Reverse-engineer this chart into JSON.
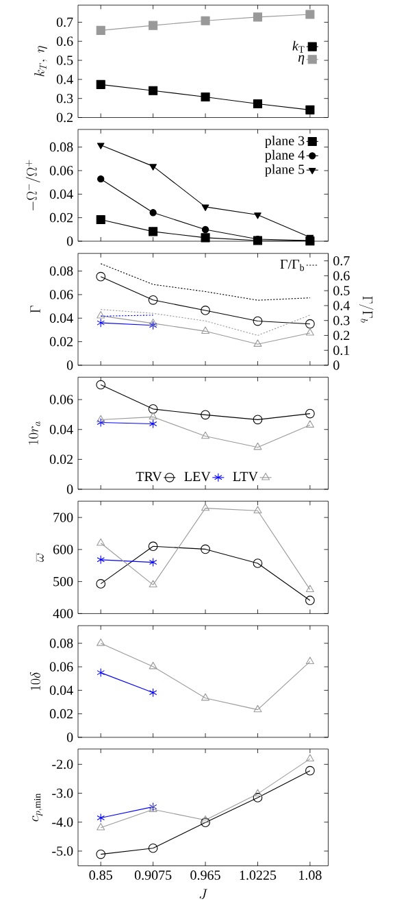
{
  "chart_data": [
    {
      "type": "line",
      "ylabel": "k_T,\\ \\eta",
      "x": [
        0.85,
        0.9075,
        0.965,
        1.0225,
        1.08
      ],
      "xlim": [
        0.825,
        1.1
      ],
      "xticks": [
        0.85,
        0.9075,
        0.965,
        1.0225,
        1.08
      ],
      "ylim": [
        0.2,
        0.79
      ],
      "yticks": [
        0.2,
        0.3,
        0.4,
        0.5,
        0.6,
        0.7
      ],
      "tick_labels": "y",
      "legend": "right",
      "grid": false,
      "series": [
        {
          "name": "*k*$_{T}$",
          "color": "#000000",
          "marker": "square",
          "values": [
            0.373,
            0.341,
            0.308,
            0.272,
            0.24
          ]
        },
        {
          "name": "*η*",
          "color": "#999999",
          "marker": "square",
          "values": [
            0.657,
            0.683,
            0.708,
            0.727,
            0.741
          ]
        }
      ]
    },
    {
      "type": "line",
      "ylabel": "-\\Omega^{-}/\\Omega^{+}",
      "x": [
        0.85,
        0.9075,
        0.965,
        1.0225,
        1.08
      ],
      "xlim": [
        0.825,
        1.1
      ],
      "xticks": [
        0.85,
        0.9075,
        0.965,
        1.0225,
        1.08
      ],
      "ylim": [
        0,
        0.095
      ],
      "yticks": [
        0,
        0.02,
        0.04,
        0.06,
        0.08
      ],
      "tick_labels": "y",
      "legend": "top right",
      "grid": false,
      "series": [
        {
          "name": "plane 3",
          "color": "#000000",
          "marker": "square",
          "values": [
            0.0183,
            0.0082,
            0.003,
            0.0006,
            0.0002
          ]
        },
        {
          "name": "plane 4",
          "color": "#000000",
          "marker": "circle-filled",
          "values": [
            0.0529,
            0.0243,
            0.0099,
            0.0017,
            0.0006
          ]
        },
        {
          "name": "plane 5",
          "color": "#000000",
          "marker": "triangle-down",
          "values": [
            0.0817,
            0.0637,
            0.0292,
            0.0224,
            0.0034
          ]
        }
      ]
    },
    {
      "type": "line",
      "ylabel": "\\Gamma",
      "y2label": "\\Gamma/\\Gamma_b",
      "x": [
        0.85,
        0.9075,
        0.965,
        1.0225,
        1.08
      ],
      "xlim": [
        0.825,
        1.1
      ],
      "xticks": [
        0.85,
        0.9075,
        0.965,
        1.0225,
        1.08
      ],
      "ylim": [
        0,
        0.095
      ],
      "yticks": [
        0,
        0.02,
        0.04,
        0.06,
        0.08
      ],
      "y2lim": [
        0,
        0.75
      ],
      "y2ticks": [
        0,
        0.1,
        0.2,
        0.3,
        0.4,
        0.5,
        0.6,
        0.7
      ],
      "tick_labels": "y",
      "legend": "top right",
      "grid": false,
      "series": [
        {
          "color": "#000000",
          "marker": "circle",
          "values": [
            0.0753,
            0.0554,
            0.0466,
            0.0375,
            0.0351
          ]
        },
        {
          "color": "#0000ff",
          "marker": "cross",
          "values": [
            0.036,
            0.0339,
            null,
            null,
            null
          ]
        },
        {
          "color": "#999999",
          "marker": "triangle",
          "values": [
            0.042,
            0.0356,
            0.0289,
            0.0179,
            0.0274
          ]
        },
        {
          "name": "Γ/Γ$_{b}$",
          "color": "#000000",
          "marker": "none",
          "line_style": "dotted",
          "axis": "y2",
          "values": [
            0.681,
            0.542,
            0.494,
            0.436,
            0.452
          ]
        },
        {
          "color": "#0000ff",
          "marker": "none",
          "line_style": "dotted",
          "axis": "y2",
          "values": [
            0.329,
            0.336,
            null,
            null,
            null
          ]
        },
        {
          "color": "#999999",
          "marker": "none",
          "line_style": "dotted",
          "axis": "y2",
          "values": [
            0.374,
            0.348,
            0.297,
            0.2,
            0.336
          ]
        }
      ]
    },
    {
      "type": "line",
      "ylabel": "10r_a",
      "x": [
        0.85,
        0.9075,
        0.965,
        1.0225,
        1.08
      ],
      "xlim": [
        0.825,
        1.1
      ],
      "xticks": [
        0.85,
        0.9075,
        0.965,
        1.0225,
        1.08
      ],
      "ylim": [
        0,
        0.075
      ],
      "yticks": [
        0,
        0.02,
        0.04,
        0.06
      ],
      "tick_labels": "y",
      "legend": "bottom",
      "grid": false,
      "series": [
        {
          "name": "TRV",
          "color": "#000000",
          "marker": "circle",
          "values": [
            0.0699,
            0.0537,
            0.0498,
            0.0466,
            0.0506
          ]
        },
        {
          "name": "LEV",
          "color": "#0000ff",
          "marker": "cross",
          "values": [
            0.0447,
            0.0438,
            null,
            null,
            null
          ]
        },
        {
          "name": "LTV",
          "color": "#999999",
          "marker": "triangle",
          "values": [
            0.0465,
            0.0484,
            0.0355,
            0.0281,
            0.043
          ]
        }
      ]
    },
    {
      "type": "line",
      "ylabel": "\\overline{\\omega}",
      "x": [
        0.85,
        0.9075,
        0.965,
        1.0225,
        1.08
      ],
      "xlim": [
        0.825,
        1.1
      ],
      "xticks": [
        0.85,
        0.9075,
        0.965,
        1.0225,
        1.08
      ],
      "ylim": [
        400,
        751
      ],
      "yticks": [
        400,
        500,
        600,
        700
      ],
      "tick_labels": "y",
      "legend": false,
      "grid": false,
      "series": [
        {
          "color": "#000000",
          "marker": "circle",
          "values": [
            493,
            610,
            601,
            557,
            441
          ]
        },
        {
          "color": "#0000ff",
          "marker": "cross",
          "values": [
            568,
            560,
            null,
            null,
            null
          ]
        },
        {
          "color": "#999999",
          "marker": "triangle",
          "values": [
            620,
            490,
            729,
            721,
            475
          ]
        }
      ]
    },
    {
      "type": "line",
      "ylabel": "10\\delta",
      "x": [
        0.85,
        0.9075,
        0.965,
        1.0225,
        1.08
      ],
      "xlim": [
        0.825,
        1.1
      ],
      "xticks": [
        0.85,
        0.9075,
        0.965,
        1.0225,
        1.08
      ],
      "ylim": [
        0,
        0.095
      ],
      "yticks": [
        0,
        0.02,
        0.04,
        0.06,
        0.08
      ],
      "tick_labels": "y",
      "legend": false,
      "grid": false,
      "series": [
        {
          "color": "#0000ff",
          "marker": "cross",
          "values": [
            0.055,
            0.038,
            null,
            null,
            null
          ]
        },
        {
          "color": "#999999",
          "marker": "triangle",
          "values": [
            0.08,
            0.0602,
            0.0334,
            0.0235,
            0.0645
          ]
        }
      ]
    },
    {
      "type": "line",
      "ylabel": "c_{p,\\min}",
      "xlabel": "J",
      "x": [
        0.85,
        0.9075,
        0.965,
        1.0225,
        1.08
      ],
      "xlim": [
        0.825,
        1.1
      ],
      "xticks": [
        0.85,
        0.9075,
        0.965,
        1.0225,
        1.08
      ],
      "ylim": [
        -5.51,
        -1.47
      ],
      "yticks": [
        {
          "value": -5,
          "label": "-5.0"
        },
        {
          "value": -4,
          "label": "-4.0"
        },
        {
          "value": -3,
          "label": "-3.0"
        },
        {
          "value": -2,
          "label": "-2.0"
        }
      ],
      "legend": false,
      "grid": false,
      "series": [
        {
          "color": "#000000",
          "marker": "circle",
          "values": [
            -5.11,
            -4.9,
            -4.01,
            -3.15,
            -2.22
          ]
        },
        {
          "color": "#0000ff",
          "marker": "cross",
          "values": [
            -3.85,
            -3.47,
            null,
            null,
            null
          ]
        },
        {
          "color": "#999999",
          "marker": "triangle",
          "values": [
            -4.19,
            -3.56,
            -3.93,
            -3.02,
            -1.81
          ]
        }
      ]
    }
  ]
}
